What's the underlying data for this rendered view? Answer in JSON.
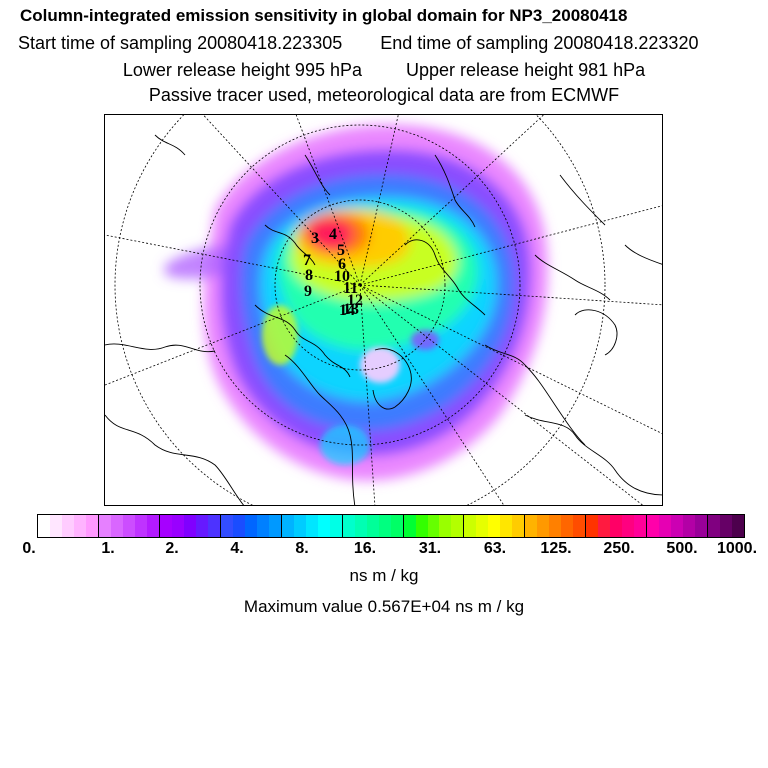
{
  "header": {
    "title": "Column-integrated emission sensitivity in global domain for NP3_20080418",
    "sampling_start": "Start time of sampling 20080418.223305",
    "sampling_end": "End time of sampling 20080418.223320",
    "release_lower": "Lower release height  995 hPa",
    "release_upper": "Upper release height  981 hPa",
    "tracer_info": "Passive tracer used, meteorological data are from ECMWF"
  },
  "map": {
    "projection": "polar-stereographic north",
    "day_markers": [
      "3",
      "4",
      "5",
      "6",
      "7",
      "8",
      "9",
      "10",
      "11",
      "12",
      "13",
      "14"
    ]
  },
  "legend": {
    "tick_labels": [
      "0.",
      "1.",
      "2.",
      "4.",
      "8.",
      "16.",
      "31.",
      "63.",
      "125.",
      "250.",
      "500.",
      "1000."
    ],
    "colors": [
      "#ffffff",
      "#ffe6ff",
      "#ffccff",
      "#ffb3ff",
      "#ff99ff",
      "#e680ff",
      "#d966ff",
      "#cc4dff",
      "#bf33ff",
      "#b31aff",
      "#a600ff",
      "#9900ff",
      "#8000ff",
      "#6619ff",
      "#4d33ff",
      "#334dff",
      "#1a4dff",
      "#0066ff",
      "#0080ff",
      "#0099ff",
      "#00b3ff",
      "#00ccff",
      "#00e6ff",
      "#00ffff",
      "#00ffe6",
      "#00ffcc",
      "#00ffb3",
      "#00ff99",
      "#00ff80",
      "#00ff66",
      "#00ff33",
      "#33ff00",
      "#66ff00",
      "#99ff00",
      "#b3ff00",
      "#ccff00",
      "#e6ff00",
      "#ffff00",
      "#ffe600",
      "#ffcc00",
      "#ffb300",
      "#ff9900",
      "#ff8000",
      "#ff6600",
      "#ff4d00",
      "#ff3300",
      "#ff1a40",
      "#ff0066",
      "#ff0080",
      "#ff0099",
      "#ff00aa",
      "#e600b3",
      "#cc00b3",
      "#b300a6",
      "#990099",
      "#800080",
      "#660066",
      "#4d004d"
    ],
    "unit": "ns m / kg",
    "max_value_text": "Maximum value  0.567E+04 ns m / kg"
  }
}
